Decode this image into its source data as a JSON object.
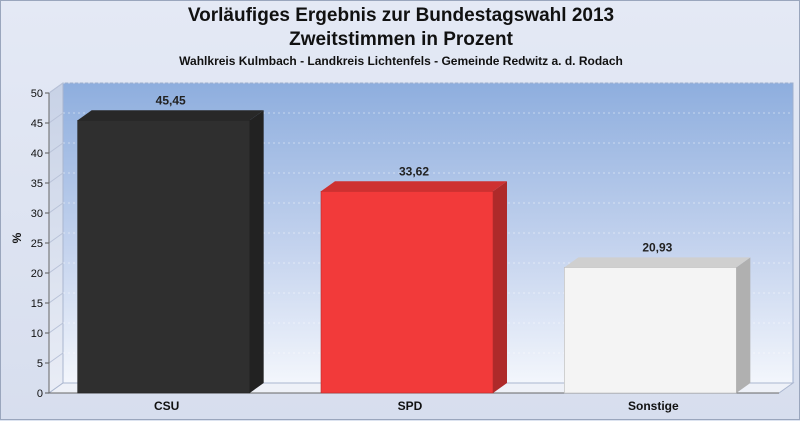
{
  "chart_data": {
    "type": "bar",
    "title": "Vorläufiges Ergebnis zur Bundestagswahl 2013",
    "title_line2": "Zweitstimmen in Prozent",
    "subtitle": "Wahlkreis Kulmbach - Landkreis Lichtenfels - Gemeinde Redwitz a. d. Rodach",
    "xlabel": "",
    "ylabel": "%",
    "categories": [
      "CSU",
      "SPD",
      "Sonstige"
    ],
    "values": [
      45.45,
      33.62,
      20.93
    ],
    "value_labels": [
      "45,45",
      "33,62",
      "20,93"
    ],
    "colors": [
      "#2f2f2f",
      "#f23a3a",
      "#f4f4f4"
    ],
    "ylim": [
      0,
      50
    ],
    "yticks": [
      0,
      5,
      10,
      15,
      20,
      25,
      30,
      35,
      40,
      45,
      50
    ],
    "grid": true,
    "legend": "none",
    "style": "3d-bars"
  }
}
